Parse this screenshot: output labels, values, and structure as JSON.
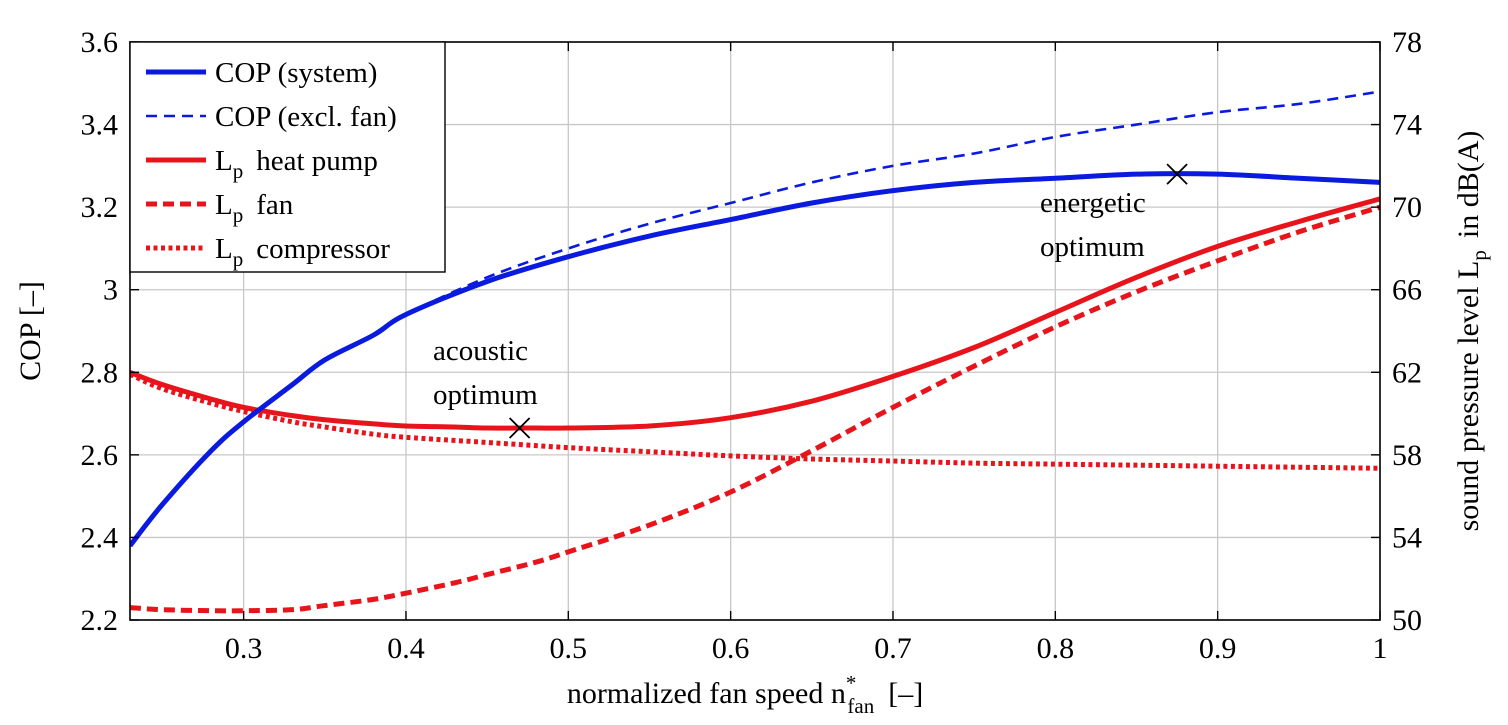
{
  "chart_data": {
    "type": "line",
    "xlabel_main": "normalized fan speed  n",
    "xlabel_sup": "*",
    "xlabel_sub": "fan",
    "xlabel_unit": "[–]",
    "ylabel": "COP  [–]",
    "y2label_main": "sound pressure level  L",
    "y2label_sub": "p",
    "y2label_unit": "in dB(A)",
    "xlim": [
      0.23,
      1.0
    ],
    "ylim": [
      2.2,
      3.6
    ],
    "y2lim": [
      50,
      78
    ],
    "grid": true,
    "legend_position": "top-left",
    "x_ticks": [
      "0.3",
      "0.4",
      "0.5",
      "0.6",
      "0.7",
      "0.8",
      "0.9",
      "1"
    ],
    "y_ticks": [
      "2.2",
      "2.4",
      "2.6",
      "2.8",
      "3",
      "3.2",
      "3.4",
      "3.6"
    ],
    "y2_ticks": [
      "50",
      "54",
      "58",
      "62",
      "66",
      "70",
      "74",
      "78"
    ],
    "series": [
      {
        "name": "COP (system)",
        "legend_main": "COP (system)",
        "legend_sub": "",
        "legend_rest": "",
        "axis": "left",
        "color": "#0a1adf",
        "style": "solid-thick",
        "x": [
          0.23,
          0.25,
          0.28,
          0.3,
          0.33,
          0.35,
          0.38,
          0.4,
          0.45,
          0.5,
          0.55,
          0.6,
          0.65,
          0.7,
          0.75,
          0.8,
          0.85,
          0.9,
          0.95,
          1.0
        ],
        "y": [
          2.38,
          2.48,
          2.61,
          2.68,
          2.77,
          2.83,
          2.89,
          2.94,
          3.02,
          3.08,
          3.13,
          3.17,
          3.21,
          3.24,
          3.26,
          3.27,
          3.28,
          3.28,
          3.27,
          3.26
        ]
      },
      {
        "name": "COP (excl. fan)",
        "legend_main": "COP (excl. fan)",
        "legend_sub": "",
        "legend_rest": "",
        "axis": "left",
        "color": "#0a1adf",
        "style": "dashed-thin",
        "x": [
          0.23,
          0.25,
          0.28,
          0.3,
          0.33,
          0.35,
          0.38,
          0.4,
          0.45,
          0.5,
          0.55,
          0.6,
          0.65,
          0.7,
          0.75,
          0.8,
          0.85,
          0.9,
          0.95,
          1.0
        ],
        "y": [
          2.38,
          2.48,
          2.61,
          2.68,
          2.77,
          2.83,
          2.89,
          2.94,
          3.03,
          3.1,
          3.16,
          3.21,
          3.26,
          3.3,
          3.33,
          3.37,
          3.4,
          3.43,
          3.45,
          3.48
        ]
      },
      {
        "name": "Lp heat pump",
        "legend_main": "L",
        "legend_sub": "p",
        "legend_rest": "heat pump",
        "axis": "right",
        "color": "#e8141b",
        "style": "solid-thick",
        "x": [
          0.23,
          0.25,
          0.28,
          0.3,
          0.33,
          0.35,
          0.38,
          0.4,
          0.43,
          0.45,
          0.48,
          0.5,
          0.55,
          0.6,
          0.65,
          0.7,
          0.75,
          0.8,
          0.85,
          0.9,
          0.95,
          1.0
        ],
        "y": [
          62.0,
          61.4,
          60.7,
          60.3,
          59.9,
          59.7,
          59.5,
          59.4,
          59.35,
          59.3,
          59.3,
          59.3,
          59.4,
          59.8,
          60.6,
          61.8,
          63.2,
          64.9,
          66.6,
          68.1,
          69.3,
          70.4
        ]
      },
      {
        "name": "Lp fan",
        "legend_main": "L",
        "legend_sub": "p",
        "legend_rest": "fan",
        "axis": "right",
        "color": "#e8141b",
        "style": "dashed-thick",
        "x": [
          0.23,
          0.25,
          0.28,
          0.3,
          0.33,
          0.35,
          0.38,
          0.4,
          0.43,
          0.45,
          0.48,
          0.5,
          0.55,
          0.6,
          0.65,
          0.7,
          0.75,
          0.8,
          0.85,
          0.9,
          0.95,
          1.0
        ],
        "y": [
          50.6,
          50.5,
          50.45,
          50.45,
          50.5,
          50.7,
          51.0,
          51.3,
          51.8,
          52.2,
          52.8,
          53.3,
          54.6,
          56.2,
          58.2,
          60.3,
          62.3,
          64.2,
          65.9,
          67.4,
          68.8,
          70.0
        ]
      },
      {
        "name": "Lp compressor",
        "legend_main": "L",
        "legend_sub": "p",
        "legend_rest": "compressor",
        "axis": "right",
        "color": "#e8141b",
        "style": "dotted-thick",
        "x": [
          0.23,
          0.25,
          0.28,
          0.3,
          0.33,
          0.35,
          0.38,
          0.4,
          0.45,
          0.5,
          0.55,
          0.6,
          0.65,
          0.7,
          0.75,
          0.8,
          0.85,
          0.9,
          0.95,
          1.0
        ],
        "y": [
          61.9,
          61.2,
          60.5,
          60.1,
          59.6,
          59.35,
          59.0,
          58.85,
          58.6,
          58.35,
          58.15,
          57.95,
          57.8,
          57.7,
          57.6,
          57.55,
          57.5,
          57.45,
          57.4,
          57.35
        ]
      }
    ],
    "annotations": [
      {
        "name": "acoustic-optimum",
        "lines": [
          "acoustic",
          "optimum"
        ],
        "x": 0.47,
        "y2": 59.3,
        "marker": "x"
      },
      {
        "name": "energetic-optimum",
        "lines": [
          "energetic",
          "optimum"
        ],
        "x": 0.875,
        "y": 3.28,
        "marker": "x"
      }
    ]
  }
}
